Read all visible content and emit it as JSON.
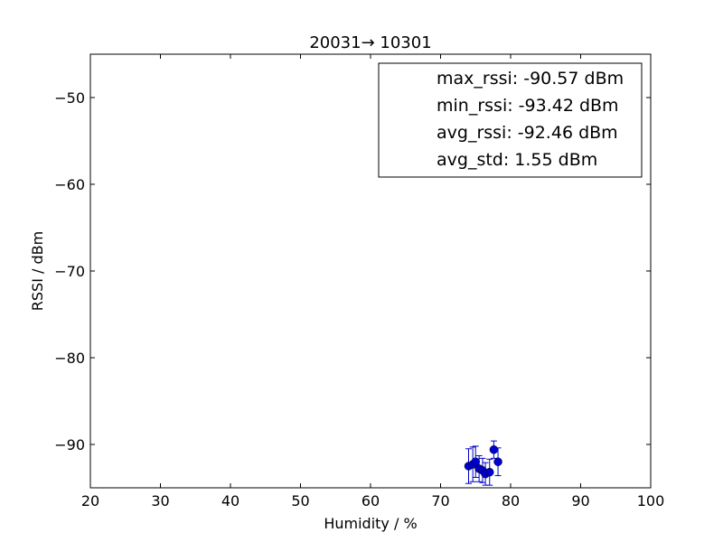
{
  "chart_data": {
    "type": "scatter",
    "title": "20031→ 10301",
    "xlabel": "Humidity / %",
    "ylabel": "RSSI / dBm",
    "xlim": [
      20,
      100
    ],
    "ylim": [
      -95,
      -45
    ],
    "xticks": [
      20,
      30,
      40,
      50,
      60,
      70,
      80,
      90,
      100
    ],
    "yticks": [
      -50,
      -60,
      -70,
      -80,
      -90
    ],
    "x_tick_labels": [
      "20",
      "30",
      "40",
      "50",
      "60",
      "70",
      "80",
      "90",
      "100"
    ],
    "y_tick_labels": [
      "−50",
      "−60",
      "−70",
      "−80",
      "−90"
    ],
    "grid": false,
    "legend_position": "top-right",
    "legend": [
      "max_rssi: -90.57 dBm",
      "min_rssi: -93.42 dBm",
      "avg_rssi: -92.46 dBm",
      "avg_std: 1.55 dBm"
    ],
    "series": [
      {
        "color": "#0000cc",
        "points": [
          {
            "x": 74.0,
            "y": -92.5,
            "err": 2.0
          },
          {
            "x": 74.6,
            "y": -92.3,
            "err": 2.0
          },
          {
            "x": 75.0,
            "y": -92.0,
            "err": 1.8
          },
          {
            "x": 75.5,
            "y": -92.8,
            "err": 1.5
          },
          {
            "x": 76.0,
            "y": -93.0,
            "err": 1.4
          },
          {
            "x": 76.4,
            "y": -93.4,
            "err": 1.3
          },
          {
            "x": 77.0,
            "y": -93.2,
            "err": 1.5
          },
          {
            "x": 77.6,
            "y": -90.6,
            "err": 1.0
          },
          {
            "x": 78.2,
            "y": -92.0,
            "err": 1.6
          }
        ]
      }
    ]
  }
}
